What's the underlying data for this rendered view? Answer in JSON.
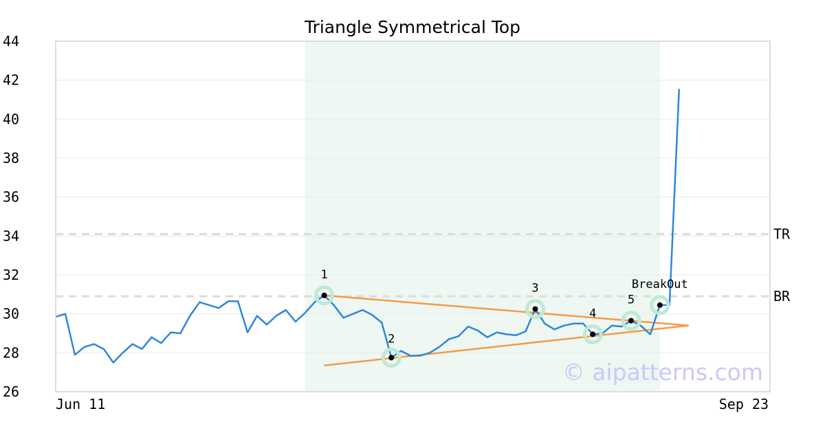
{
  "chart_data": {
    "type": "line",
    "title": "Triangle Symmetrical Top",
    "watermark": "© aipatterns.com",
    "ylim": [
      26,
      44
    ],
    "y_ticks": [
      26,
      28,
      30,
      32,
      34,
      36,
      38,
      40,
      42,
      44
    ],
    "x_tick_labels": [
      "Jun 11",
      "Sep 23"
    ],
    "grid": true,
    "colors": {
      "price": "#2e86de",
      "trendline": "#f79a45",
      "pattern_zone": "#eef7f2",
      "marker_halo": "#bfe9d4",
      "level_line": "#dcdcdc"
    },
    "series": [
      {
        "values": [
          29.85,
          30.0,
          27.9,
          28.3,
          28.45,
          28.2,
          27.5,
          28.0,
          28.45,
          28.2,
          28.8,
          28.5,
          29.05,
          29.0,
          29.9,
          30.6,
          30.45,
          30.3,
          30.65,
          30.65,
          29.05,
          29.9,
          29.45,
          29.9,
          30.2,
          29.6,
          30.05,
          30.6,
          30.95,
          30.45,
          29.8,
          30.0,
          30.2,
          29.95,
          29.55,
          27.75,
          28.1,
          27.85,
          27.85,
          28.0,
          28.3,
          28.7,
          28.85,
          29.35,
          29.15,
          28.8,
          29.05,
          28.95,
          28.9,
          29.1,
          30.25,
          29.5,
          29.2,
          29.4,
          29.5,
          29.5,
          28.95,
          29.0,
          29.4,
          29.35,
          29.65,
          29.4,
          28.95,
          30.45,
          30.45,
          41.55
        ]
      }
    ],
    "trendlines": [
      {
        "from": [
          28,
          30.95
        ],
        "to": [
          66,
          29.4
        ]
      },
      {
        "from": [
          28,
          27.35
        ],
        "to": [
          66,
          29.4
        ]
      }
    ],
    "pattern_zone": {
      "x_start": 26,
      "x_end": 63
    },
    "levels": [
      {
        "label": "TR",
        "value": 34.1
      },
      {
        "label": "BR",
        "value": 30.9
      }
    ],
    "points": [
      {
        "label": "1",
        "x": 28,
        "y": 30.95
      },
      {
        "label": "2",
        "x": 35,
        "y": 27.75
      },
      {
        "label": "3",
        "x": 50,
        "y": 30.25
      },
      {
        "label": "4",
        "x": 56,
        "y": 28.95
      },
      {
        "label": "5",
        "x": 60,
        "y": 29.65
      },
      {
        "label": "BreakOut",
        "x": 63,
        "y": 30.45
      }
    ]
  }
}
